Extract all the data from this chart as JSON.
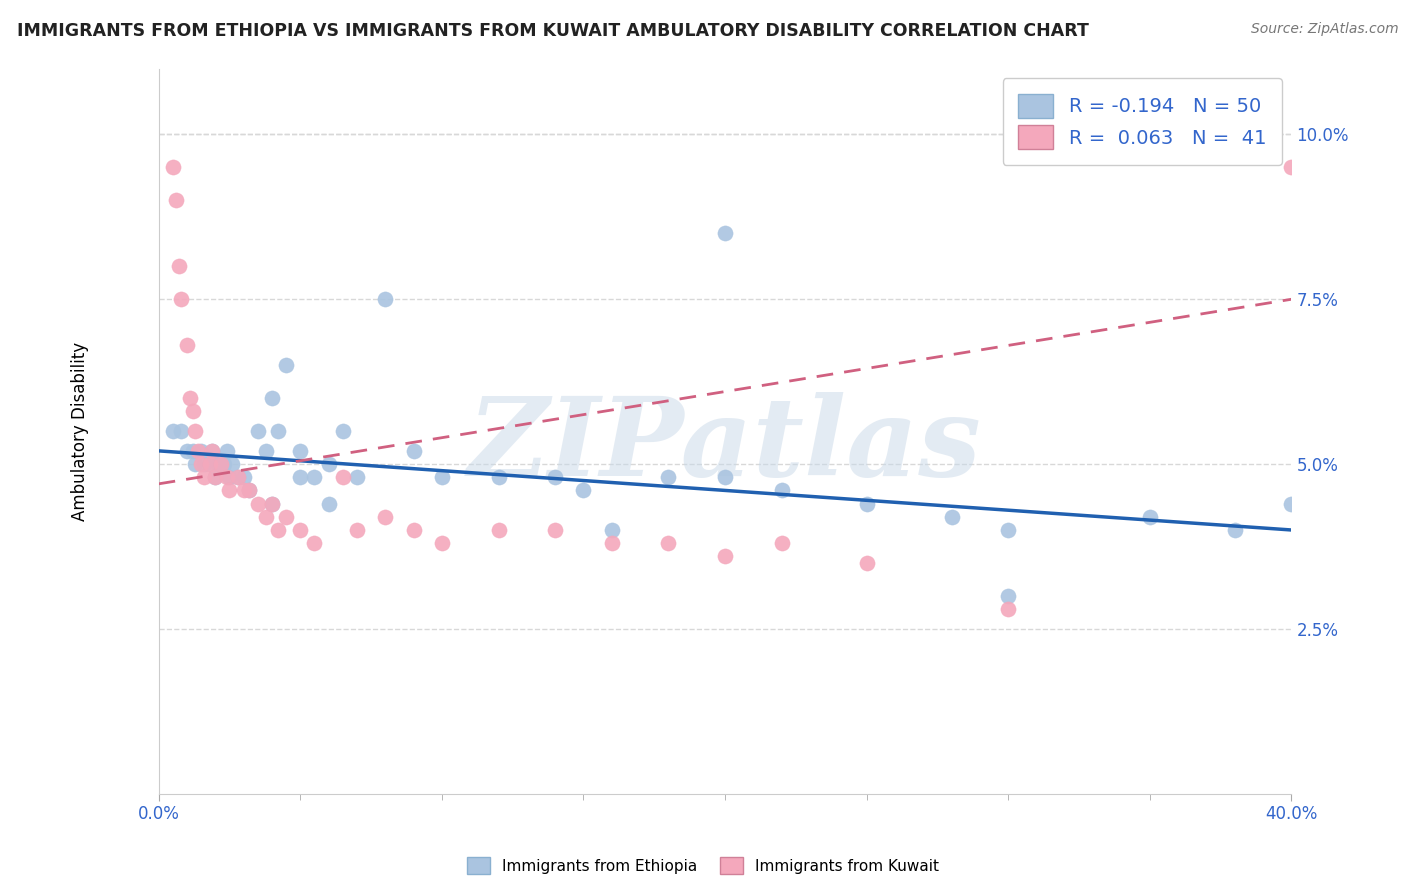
{
  "title": "IMMIGRANTS FROM ETHIOPIA VS IMMIGRANTS FROM KUWAIT AMBULATORY DISABILITY CORRELATION CHART",
  "source": "Source: ZipAtlas.com",
  "ylabel": "Ambulatory Disability",
  "yticks": [
    0.025,
    0.05,
    0.075,
    0.1
  ],
  "ytick_labels": [
    "2.5%",
    "5.0%",
    "7.5%",
    "10.0%"
  ],
  "xlim": [
    0.0,
    0.4
  ],
  "ylim": [
    0.0,
    0.11
  ],
  "ethiopia_color": "#aac4e0",
  "kuwait_color": "#f4a8bc",
  "trend_ethiopia_color": "#2060b0",
  "trend_kuwait_color": "#d06080",
  "ethiopia_R": -0.194,
  "ethiopia_N": 50,
  "kuwait_R": 0.063,
  "kuwait_N": 41,
  "ethiopia_trend_x0": 0.0,
  "ethiopia_trend_y0": 0.052,
  "ethiopia_trend_x1": 0.4,
  "ethiopia_trend_y1": 0.04,
  "kuwait_trend_x0": 0.0,
  "kuwait_trend_y0": 0.047,
  "kuwait_trend_x1": 0.4,
  "kuwait_trend_y1": 0.075,
  "ethiopia_scatter_x": [
    0.005,
    0.008,
    0.01,
    0.012,
    0.013,
    0.015,
    0.016,
    0.018,
    0.019,
    0.02,
    0.021,
    0.022,
    0.023,
    0.024,
    0.025,
    0.026,
    0.028,
    0.03,
    0.032,
    0.035,
    0.038,
    0.04,
    0.042,
    0.045,
    0.05,
    0.055,
    0.06,
    0.065,
    0.07,
    0.08,
    0.09,
    0.1,
    0.12,
    0.14,
    0.15,
    0.16,
    0.18,
    0.2,
    0.22,
    0.25,
    0.28,
    0.3,
    0.3,
    0.35,
    0.38,
    0.4,
    0.04,
    0.05,
    0.06,
    0.2
  ],
  "ethiopia_scatter_y": [
    0.055,
    0.055,
    0.052,
    0.052,
    0.05,
    0.052,
    0.05,
    0.05,
    0.052,
    0.048,
    0.05,
    0.05,
    0.05,
    0.052,
    0.048,
    0.05,
    0.048,
    0.048,
    0.046,
    0.055,
    0.052,
    0.06,
    0.055,
    0.065,
    0.052,
    0.048,
    0.05,
    0.055,
    0.048,
    0.075,
    0.052,
    0.048,
    0.048,
    0.048,
    0.046,
    0.04,
    0.048,
    0.048,
    0.046,
    0.044,
    0.042,
    0.04,
    0.03,
    0.042,
    0.04,
    0.044,
    0.044,
    0.048,
    0.044,
    0.085
  ],
  "kuwait_scatter_x": [
    0.005,
    0.006,
    0.007,
    0.008,
    0.01,
    0.011,
    0.012,
    0.013,
    0.014,
    0.015,
    0.016,
    0.018,
    0.019,
    0.02,
    0.022,
    0.024,
    0.025,
    0.028,
    0.03,
    0.032,
    0.035,
    0.038,
    0.04,
    0.042,
    0.045,
    0.05,
    0.055,
    0.065,
    0.07,
    0.08,
    0.09,
    0.1,
    0.12,
    0.14,
    0.16,
    0.18,
    0.2,
    0.22,
    0.25,
    0.3,
    0.4
  ],
  "kuwait_scatter_y": [
    0.095,
    0.09,
    0.08,
    0.075,
    0.068,
    0.06,
    0.058,
    0.055,
    0.052,
    0.05,
    0.048,
    0.05,
    0.052,
    0.048,
    0.05,
    0.048,
    0.046,
    0.048,
    0.046,
    0.046,
    0.044,
    0.042,
    0.044,
    0.04,
    0.042,
    0.04,
    0.038,
    0.048,
    0.04,
    0.042,
    0.04,
    0.038,
    0.04,
    0.04,
    0.038,
    0.038,
    0.036,
    0.038,
    0.035,
    0.028,
    0.095
  ],
  "watermark": "ZIPatlas",
  "background_color": "#ffffff",
  "grid_color": "#d8d8d8"
}
